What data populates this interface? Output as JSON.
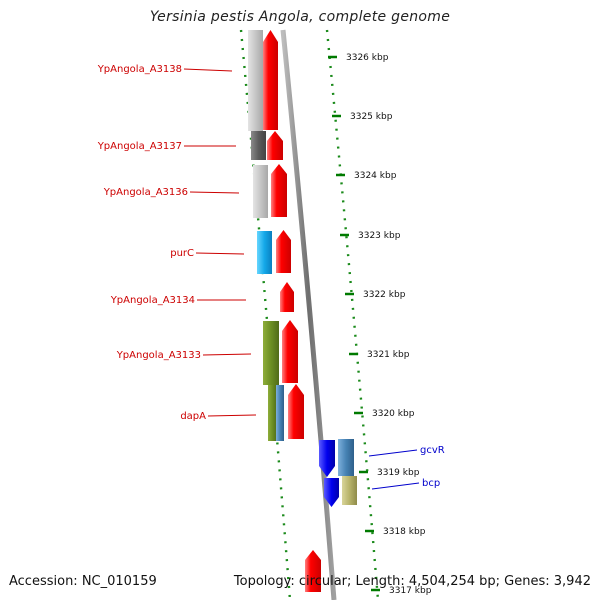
{
  "title": "Yersinia pestis Angola, complete genome",
  "footer": {
    "accession": "Accession: NC_010159",
    "stats": "Topology: circular; Length: 4,504,254 bp; Genes: 3,942"
  },
  "colors": {
    "label_left": "#cc0000",
    "label_right": "#0000cc",
    "tick": "#007a00",
    "backbone": "#888888",
    "forward_cds": "#ff0000",
    "gray_block": "#c8c8c8",
    "dark_gray_block": "#666666",
    "cyan_block": "#00aaee",
    "olive_block": "#6b8e23",
    "steel_block": "#4682b4",
    "blue_cds": "#0000ee",
    "khaki_block": "#b7b36a"
  },
  "scale_labels": [
    "3326 kbp",
    "3325 kbp",
    "3324 kbp",
    "3323 kbp",
    "3322 kbp",
    "3321 kbp",
    "3320 kbp",
    "3319 kbp",
    "3318 kbp",
    "3317 kbp"
  ],
  "genes_left": [
    "YpAngola_A3138",
    "YpAngola_A3137",
    "YpAngola_A3136",
    "purC",
    "YpAngola_A3134",
    "YpAngola_A3133",
    "dapA"
  ],
  "genes_right": [
    "gcvR",
    "bcp"
  ]
}
